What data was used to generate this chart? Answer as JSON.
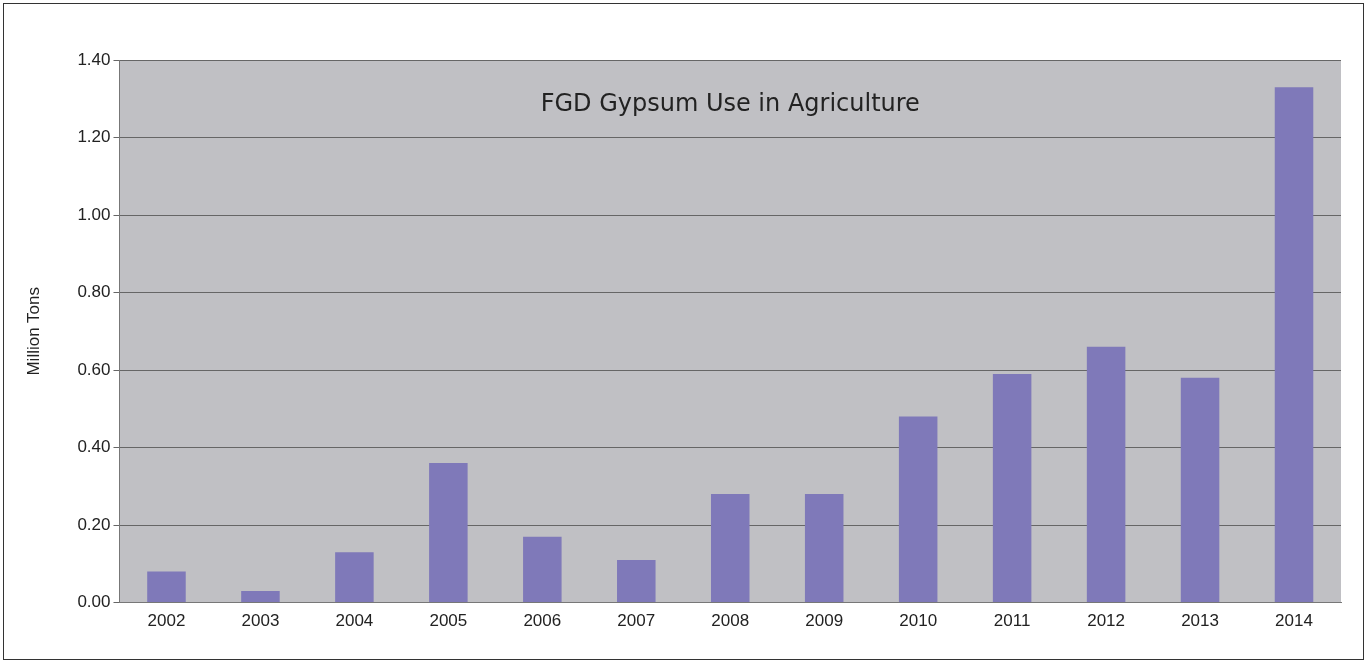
{
  "chart_data": {
    "type": "bar",
    "title": "FGD Gypsum Use in Agriculture",
    "ylabel": "Million Tons",
    "categories": [
      "2002",
      "2003",
      "2004",
      "2005",
      "2006",
      "2007",
      "2008",
      "2009",
      "2010",
      "2011",
      "2012",
      "2013",
      "2014"
    ],
    "values": [
      0.08,
      0.03,
      0.13,
      0.36,
      0.17,
      0.11,
      0.28,
      0.28,
      0.48,
      0.59,
      0.66,
      0.58,
      1.33
    ],
    "color": "#7f79b9",
    "ylim": [
      0,
      1.4
    ],
    "yticks": [
      {
        "value": 0,
        "label": "0.00"
      },
      {
        "value": 0.2,
        "label": "0.20"
      },
      {
        "value": 0.4,
        "label": "0.40"
      },
      {
        "value": 0.6,
        "label": "0.60"
      },
      {
        "value": 0.8,
        "label": "0.80"
      },
      {
        "value": 1,
        "label": "1.00"
      },
      {
        "value": 1.2,
        "label": "1.20"
      },
      {
        "value": 1.4,
        "label": "1.40"
      }
    ],
    "grid": "y",
    "legend": false
  }
}
